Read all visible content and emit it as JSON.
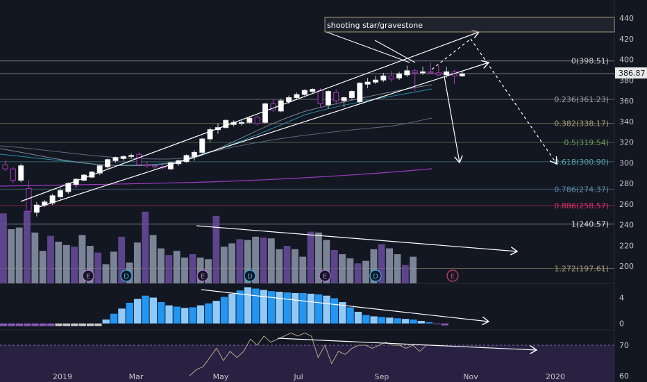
{
  "chart_data": {
    "type": "candlestick",
    "x_axis": {
      "ticks": [
        "2019",
        "Mar",
        "May",
        "Jul",
        "Sep",
        "Nov",
        "2020"
      ]
    },
    "y_axis": {
      "ticks": [
        440,
        420,
        400,
        380,
        360,
        340,
        320,
        300,
        280,
        260,
        240,
        220,
        200
      ],
      "ylim": [
        186,
        452
      ]
    },
    "last_price": 386.87,
    "candles": [
      {
        "o": 298,
        "h": 302,
        "l": 292,
        "c": 294
      },
      {
        "o": 294,
        "h": 296,
        "l": 280,
        "c": 283
      },
      {
        "o": 283,
        "h": 299,
        "l": 281,
        "c": 297
      },
      {
        "o": 275,
        "h": 283,
        "l": 252,
        "c": 253
      },
      {
        "o": 252,
        "h": 262,
        "l": 248,
        "c": 259
      },
      {
        "o": 259,
        "h": 264,
        "l": 257,
        "c": 262
      },
      {
        "o": 261,
        "h": 270,
        "l": 259,
        "c": 268
      },
      {
        "o": 267,
        "h": 275,
        "l": 265,
        "c": 273
      },
      {
        "o": 272,
        "h": 281,
        "l": 270,
        "c": 280
      },
      {
        "o": 279,
        "h": 285,
        "l": 276,
        "c": 284
      },
      {
        "o": 283,
        "h": 289,
        "l": 282,
        "c": 288
      },
      {
        "o": 286,
        "h": 292,
        "l": 285,
        "c": 291
      },
      {
        "o": 290,
        "h": 298,
        "l": 288,
        "c": 297
      },
      {
        "o": 296,
        "h": 304,
        "l": 294,
        "c": 303
      },
      {
        "o": 302,
        "h": 306,
        "l": 300,
        "c": 305
      },
      {
        "o": 304,
        "h": 307,
        "l": 302,
        "c": 306
      },
      {
        "o": 306,
        "h": 309,
        "l": 304,
        "c": 307
      },
      {
        "o": 308,
        "h": 310,
        "l": 296,
        "c": 298
      },
      {
        "o": 298,
        "h": 301,
        "l": 295,
        "c": 297
      },
      {
        "o": 297,
        "h": 299,
        "l": 293,
        "c": 296
      },
      {
        "o": 296,
        "h": 298,
        "l": 293,
        "c": 295
      },
      {
        "o": 294,
        "h": 301,
        "l": 293,
        "c": 300
      },
      {
        "o": 299,
        "h": 303,
        "l": 297,
        "c": 302
      },
      {
        "o": 301,
        "h": 308,
        "l": 300,
        "c": 307
      },
      {
        "o": 306,
        "h": 312,
        "l": 302,
        "c": 310
      },
      {
        "o": 310,
        "h": 324,
        "l": 309,
        "c": 323
      },
      {
        "o": 323,
        "h": 334,
        "l": 320,
        "c": 332
      },
      {
        "o": 332,
        "h": 338,
        "l": 328,
        "c": 334
      },
      {
        "o": 334,
        "h": 342,
        "l": 333,
        "c": 341
      },
      {
        "o": 337,
        "h": 341,
        "l": 335,
        "c": 339
      },
      {
        "o": 338,
        "h": 341,
        "l": 336,
        "c": 339
      },
      {
        "o": 339,
        "h": 345,
        "l": 338,
        "c": 343
      },
      {
        "o": 344,
        "h": 346,
        "l": 336,
        "c": 338
      },
      {
        "o": 339,
        "h": 358,
        "l": 338,
        "c": 357
      },
      {
        "o": 357,
        "h": 361,
        "l": 349,
        "c": 351
      },
      {
        "o": 350,
        "h": 362,
        "l": 349,
        "c": 360
      },
      {
        "o": 359,
        "h": 365,
        "l": 357,
        "c": 363
      },
      {
        "o": 363,
        "h": 368,
        "l": 361,
        "c": 366
      },
      {
        "o": 366,
        "h": 371,
        "l": 365,
        "c": 370
      },
      {
        "o": 369,
        "h": 372,
        "l": 367,
        "c": 371
      },
      {
        "o": 370,
        "h": 372,
        "l": 353,
        "c": 357
      },
      {
        "o": 356,
        "h": 370,
        "l": 352,
        "c": 369
      },
      {
        "o": 368,
        "h": 371,
        "l": 356,
        "c": 360
      },
      {
        "o": 360,
        "h": 364,
        "l": 354,
        "c": 363
      },
      {
        "o": 363,
        "h": 370,
        "l": 361,
        "c": 369
      },
      {
        "o": 359,
        "h": 378,
        "l": 357,
        "c": 377
      },
      {
        "o": 376,
        "h": 382,
        "l": 372,
        "c": 378
      },
      {
        "o": 378,
        "h": 384,
        "l": 376,
        "c": 380
      },
      {
        "o": 380,
        "h": 387,
        "l": 378,
        "c": 384
      },
      {
        "o": 384,
        "h": 389,
        "l": 378,
        "c": 381
      },
      {
        "o": 382,
        "h": 388,
        "l": 380,
        "c": 386
      },
      {
        "o": 385,
        "h": 394,
        "l": 383,
        "c": 389
      },
      {
        "o": 389,
        "h": 391,
        "l": 369,
        "c": 387
      },
      {
        "o": 387,
        "h": 393,
        "l": 385,
        "c": 388
      },
      {
        "o": 388,
        "h": 397,
        "l": 386,
        "c": 387
      },
      {
        "o": 387,
        "h": 394,
        "l": 384,
        "c": 385
      },
      {
        "o": 385,
        "h": 393,
        "l": 382,
        "c": 388
      },
      {
        "o": 388,
        "h": 390,
        "l": 376,
        "c": 384
      },
      {
        "o": 384,
        "h": 389,
        "l": 383,
        "c": 386
      }
    ],
    "fibonacci": [
      {
        "label": "0(398.51)",
        "value": 398.51,
        "color": "#c8c8c8"
      },
      {
        "label": "0.236(361.23)",
        "value": 361.23,
        "color": "#9e9e9e"
      },
      {
        "label": "0.382(338.17)",
        "value": 338.17,
        "color": "#a59a70"
      },
      {
        "label": "0.5(319.54)",
        "value": 319.54,
        "color": "#6a9a5a"
      },
      {
        "label": "0.618(300.90)",
        "value": 300.9,
        "color": "#5aa0a8"
      },
      {
        "label": "0.786(274.37)",
        "value": 274.37,
        "color": "#5f8aa8"
      },
      {
        "label": "0.886(258.57)",
        "value": 258.57,
        "color": "#e0306a"
      },
      {
        "label": "1(240.57)",
        "value": 240.57,
        "color": "#e0e0e0"
      },
      {
        "label": "1.272(197.61)",
        "value": 197.61,
        "color": "#a59a70"
      }
    ],
    "annotations": [
      {
        "text": "shooting star/gravestone"
      }
    ],
    "event_markers": [
      {
        "letter": "E",
        "color": "#b87ad8"
      },
      {
        "letter": "D",
        "color": "#3ab0e8"
      },
      {
        "letter": "E",
        "color": "#b87ad8"
      },
      {
        "letter": "D",
        "color": "#3ab0e8"
      },
      {
        "letter": "E",
        "color": "#b87ad8"
      },
      {
        "letter": "D",
        "color": "#3ab0e8"
      },
      {
        "letter": "E",
        "color": "#d04070"
      }
    ],
    "volume": [
      0.84,
      0.65,
      0.67,
      0.87,
      0.61,
      0.39,
      0.57,
      0.5,
      0.46,
      0.44,
      0.58,
      0.45,
      0.37,
      0.23,
      0.38,
      0.56,
      0.25,
      0.49,
      0.86,
      0.58,
      0.42,
      0.34,
      0.39,
      0.31,
      0.35,
      0.31,
      0.29,
      0.81,
      0.44,
      0.48,
      0.53,
      0.52,
      0.56,
      0.55,
      0.54,
      0.41,
      0.45,
      0.41,
      0.32,
      0.62,
      0.61,
      0.52,
      0.4,
      0.35,
      0.3,
      0.24,
      0.27,
      0.41,
      0.47,
      0.42,
      0.35,
      0.22,
      0.32
    ],
    "oscillator": {
      "ticks": [
        4,
        0
      ],
      "ylim": [
        -1,
        6.2
      ],
      "values": [
        -0.4,
        -0.4,
        -0.4,
        -0.4,
        -0.4,
        -0.4,
        -0.4,
        -0.4,
        -0.4,
        -0.4,
        -0.4,
        -0.4,
        -0.4,
        0.6,
        1.5,
        2.3,
        3.2,
        3.8,
        4.3,
        4.0,
        3.3,
        2.8,
        2.6,
        2.4,
        2.5,
        2.8,
        3.1,
        3.5,
        4.1,
        4.6,
        5.1,
        5.6,
        5.4,
        5.2,
        5.0,
        4.9,
        4.8,
        4.7,
        4.7,
        4.6,
        4.5,
        4.3,
        3.9,
        3.3,
        2.5,
        1.8,
        1.3,
        1.1,
        1.0,
        0.9,
        0.8,
        0.7,
        0.6,
        0.4,
        0.2,
        -0.1,
        -0.3
      ],
      "colors": [
        "#8a5ab8",
        "#8a5ab8",
        "#8a5ab8",
        "#8a5ab8",
        "#8a5ab8",
        "#8a5ab8",
        "#8a5ab8",
        "#c8c8c8",
        "#c8c8c8",
        "#c8c8c8",
        "#c8c8c8",
        "#c8c8c8",
        "#c8c8c8"
      ]
    },
    "rsi": {
      "ticks": [
        70,
        60
      ],
      "ylim": [
        58,
        75
      ],
      "values": [
        null,
        null,
        null,
        null,
        null,
        null,
        null,
        null,
        null,
        null,
        null,
        null,
        null,
        null,
        null,
        null,
        null,
        null,
        null,
        null,
        null,
        null,
        null,
        null,
        null,
        null,
        null,
        null,
        60,
        62,
        63,
        66,
        69,
        65,
        68,
        66,
        68,
        72,
        70,
        73,
        71,
        72,
        73,
        74,
        73,
        74,
        73,
        66,
        70,
        64,
        68,
        67,
        69,
        70,
        70,
        69,
        70,
        71,
        70,
        70,
        69,
        70,
        68,
        70
      ]
    }
  }
}
